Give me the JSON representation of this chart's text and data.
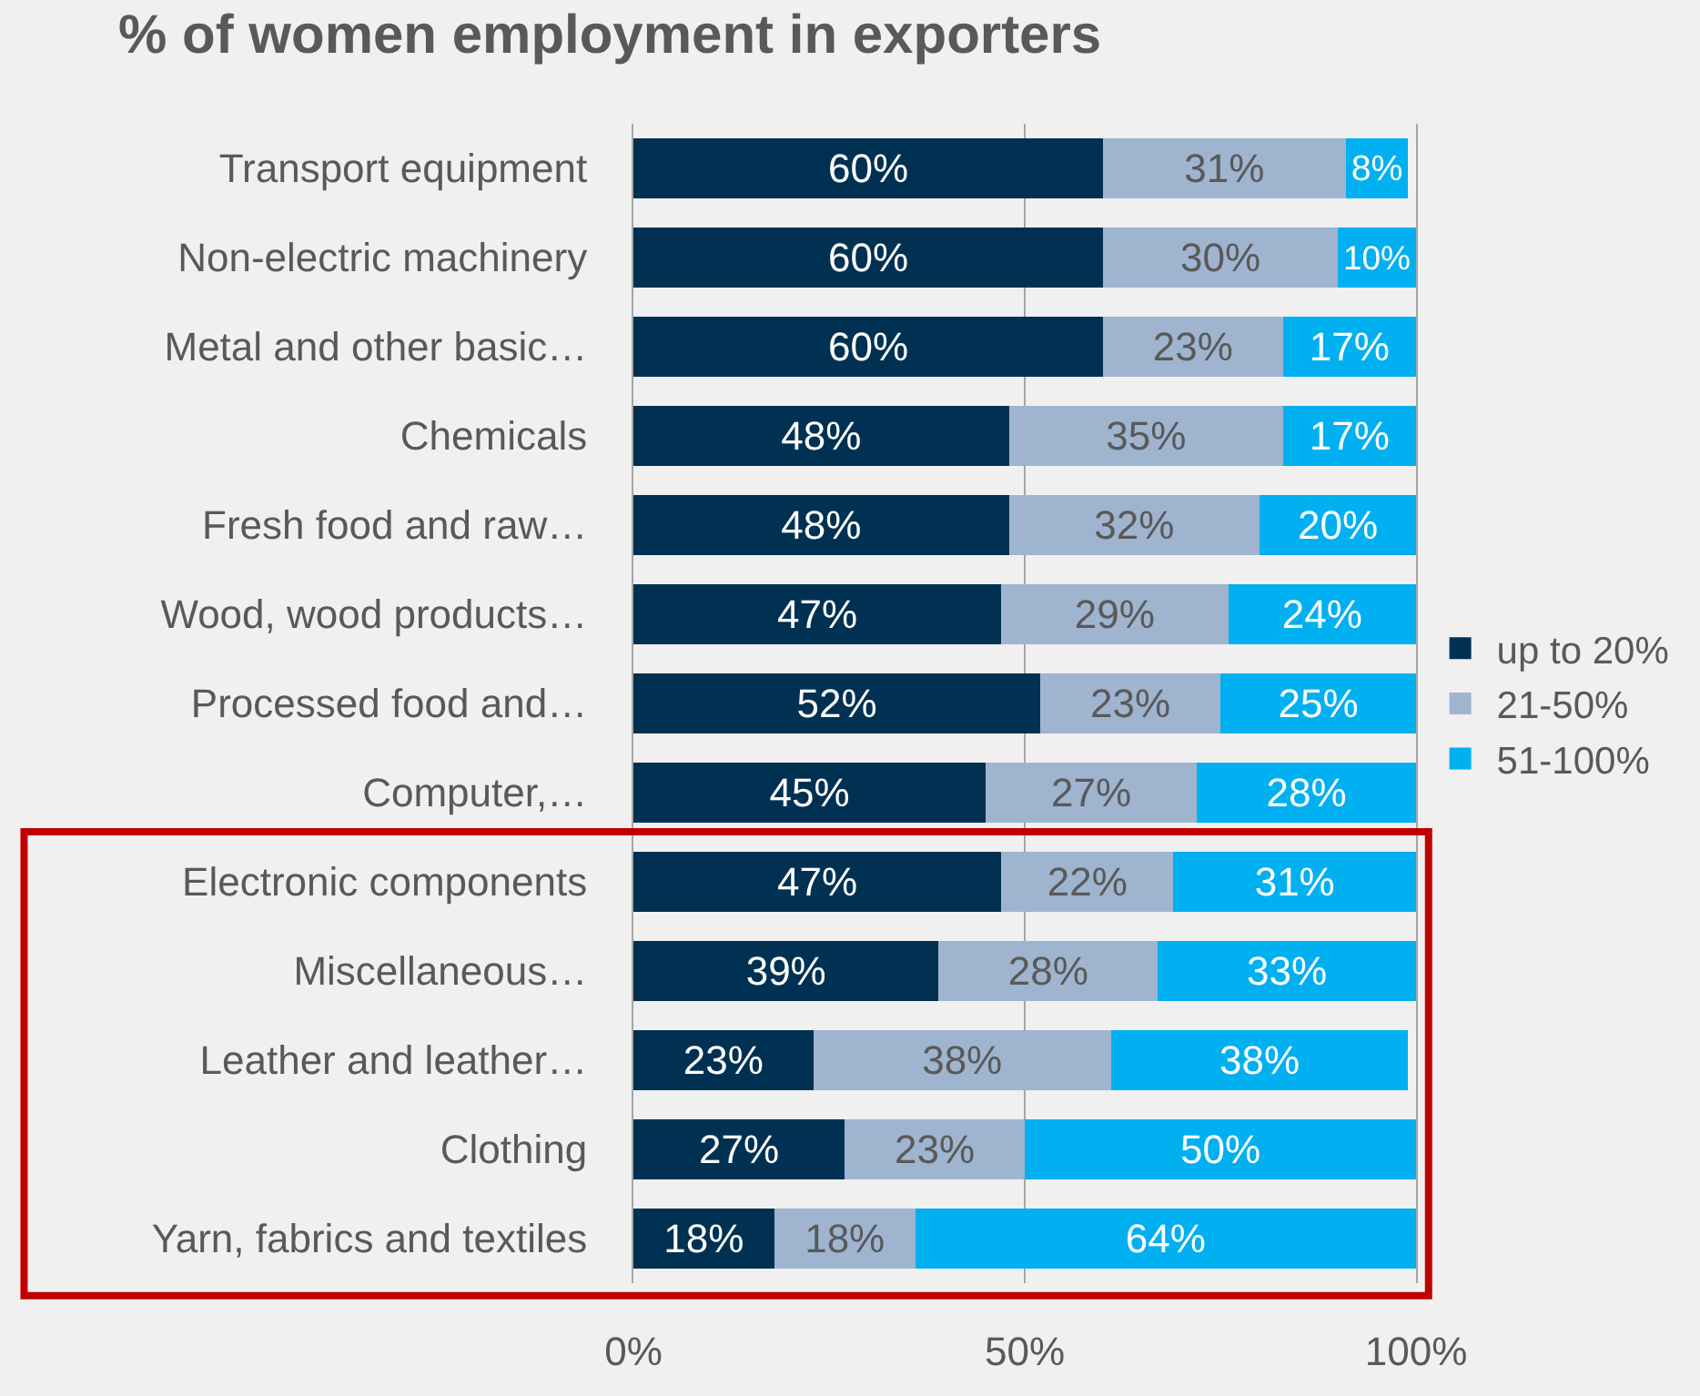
{
  "chart_data": {
    "type": "bar",
    "orientation": "horizontal",
    "stacked": true,
    "title": "% of women employment in exporters",
    "categories": [
      "Transport equipment",
      "Non-electric machinery",
      "Metal and other basic…",
      "Chemicals",
      "Fresh food and raw…",
      "Wood, wood products…",
      "Processed food and…",
      "Computer,…",
      "Electronic components",
      "Miscellaneous…",
      "Leather and leather…",
      "Clothing",
      "Yarn, fabrics and textiles"
    ],
    "series": [
      {
        "name": "up to 20%",
        "color": "#003152",
        "values": [
          60,
          60,
          60,
          48,
          48,
          47,
          52,
          45,
          47,
          39,
          23,
          27,
          18
        ],
        "value_labels": [
          "60%",
          "60%",
          "60%",
          "48%",
          "48%",
          "47%",
          "52%",
          "45%",
          "47%",
          "39%",
          "23%",
          "27%",
          "18%"
        ]
      },
      {
        "name": "21-50%",
        "color": "#9fb4cf",
        "values": [
          31,
          30,
          23,
          35,
          32,
          29,
          23,
          27,
          22,
          28,
          38,
          23,
          18
        ],
        "value_labels": [
          "31%",
          "30%",
          "23%",
          "35%",
          "32%",
          "29%",
          "23%",
          "27%",
          "22%",
          "28%",
          "38%",
          "23%",
          "18%"
        ]
      },
      {
        "name": "51-100%",
        "color": "#00b0f0",
        "values": [
          8,
          10,
          17,
          17,
          20,
          24,
          25,
          28,
          31,
          33,
          38,
          50,
          64
        ],
        "value_labels": [
          "8%",
          "10%",
          "17%",
          "17%",
          "20%",
          "24%",
          "25%",
          "28%",
          "31%",
          "33%",
          "38%",
          "50%",
          "64%"
        ]
      }
    ],
    "xlim": [
      0,
      100
    ],
    "xticks": [
      {
        "value": 0,
        "label": "0%"
      },
      {
        "value": 50,
        "label": "50%"
      },
      {
        "value": 100,
        "label": "100%"
      }
    ],
    "grid": "x",
    "legend": "right"
  }
}
